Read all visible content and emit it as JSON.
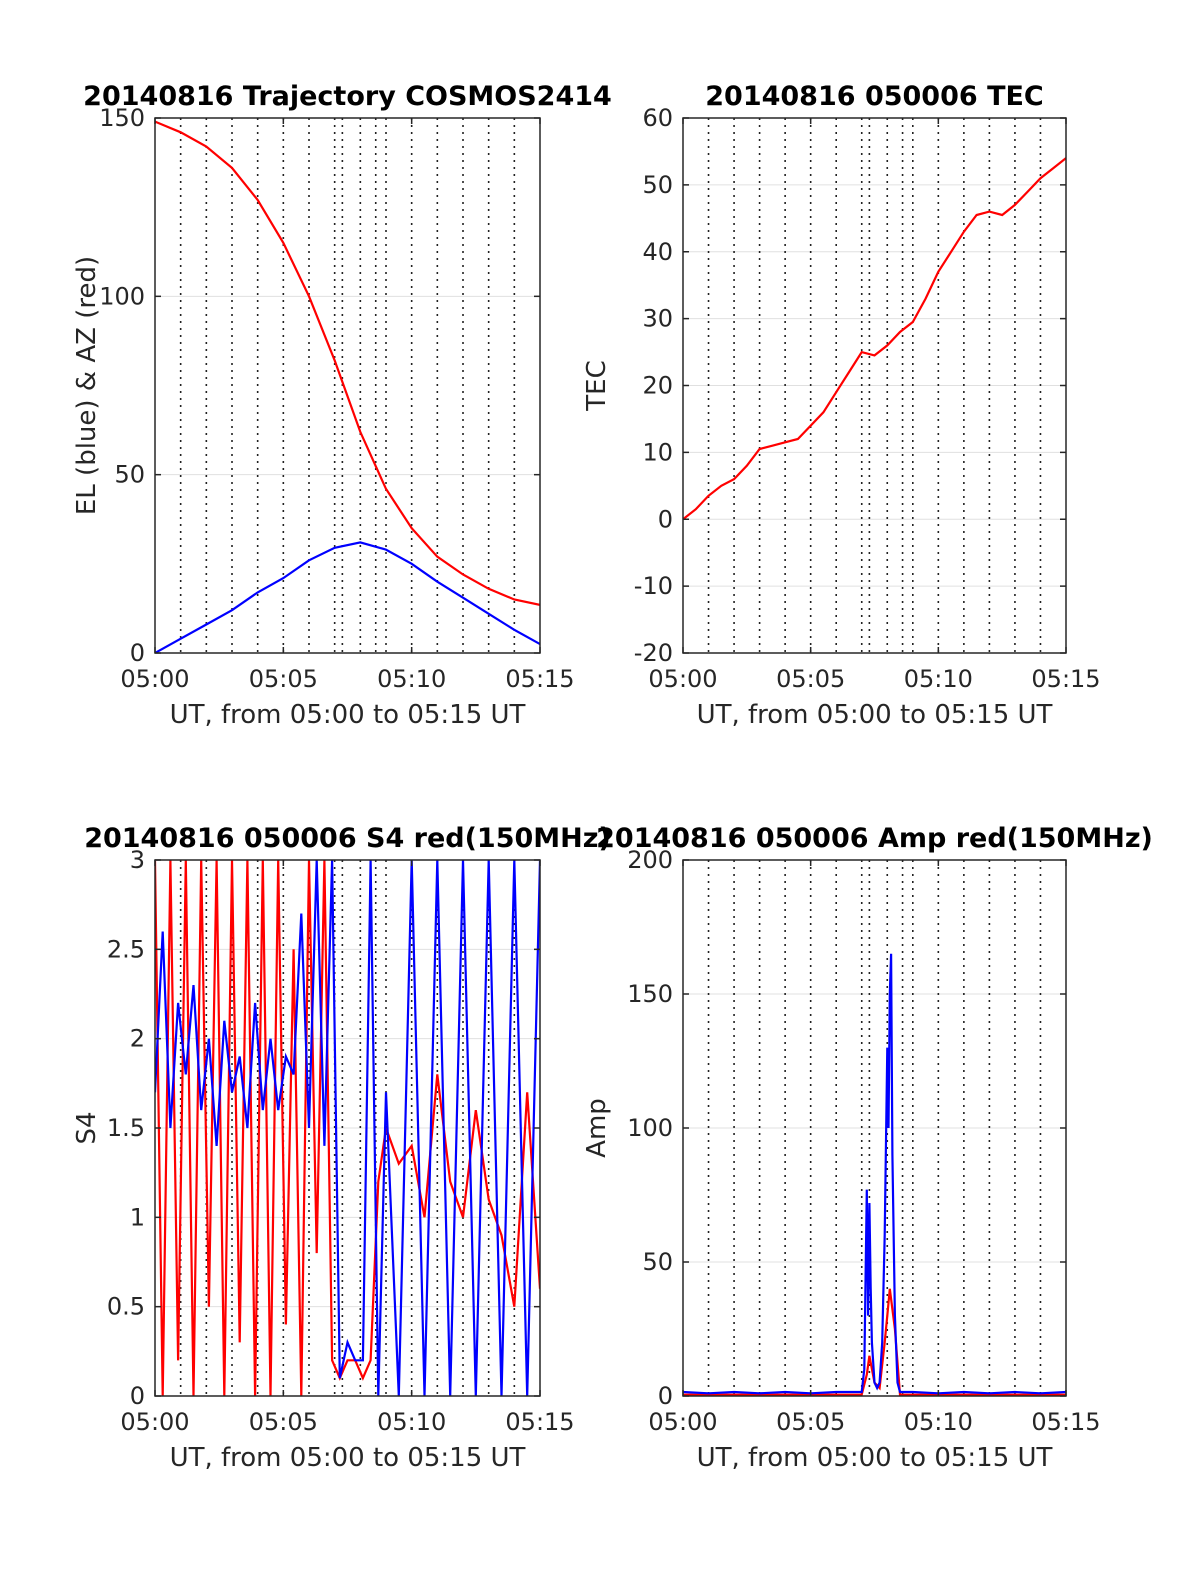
{
  "chart_data": [
    {
      "id": "trajectory",
      "type": "line",
      "title": "20140816 Trajectory COSMOS2414",
      "xlabel": "UT, from 05:00 to 05:15 UT",
      "ylabel": "EL (blue) & AZ (red)",
      "xlim": [
        0,
        15
      ],
      "ylim": [
        0,
        150
      ],
      "xticks": [
        "05:00",
        "05:05",
        "05:10",
        "05:15"
      ],
      "yticks": [
        "0",
        "50",
        "100",
        "150"
      ],
      "grid": true,
      "series": [
        {
          "color": "#ff0000",
          "x": [
            0,
            1,
            2,
            3,
            4,
            5,
            6,
            7,
            8,
            9,
            10,
            11,
            12,
            13,
            14,
            15
          ],
          "y": [
            149,
            146,
            142,
            136,
            127,
            115,
            100,
            82,
            62,
            46,
            35,
            27,
            22,
            18,
            15,
            13.5
          ]
        },
        {
          "color": "#0000ff",
          "x": [
            0,
            1,
            2,
            3,
            4,
            5,
            6,
            7,
            8,
            9,
            10,
            11,
            12,
            13,
            14,
            15
          ],
          "y": [
            0,
            4,
            8,
            12,
            17,
            21,
            26,
            29.5,
            31,
            29,
            25,
            20,
            15.5,
            11,
            6.5,
            2.5
          ]
        }
      ]
    },
    {
      "id": "tec",
      "type": "line",
      "title": "20140816 050006 TEC",
      "xlabel": "UT, from 05:00 to 05:15 UT",
      "ylabel": "TEC",
      "xlim": [
        0,
        15
      ],
      "ylim": [
        -20,
        60
      ],
      "xticks": [
        "05:00",
        "05:05",
        "05:10",
        "05:15"
      ],
      "yticks": [
        "-20",
        "-10",
        "0",
        "10",
        "20",
        "30",
        "40",
        "50",
        "60"
      ],
      "grid": true,
      "series": [
        {
          "color": "#ff0000",
          "x": [
            0,
            0.5,
            1,
            1.5,
            2,
            2.5,
            3,
            3.5,
            4,
            4.5,
            5,
            5.5,
            6,
            6.5,
            7,
            7.5,
            8,
            8.5,
            9,
            9.5,
            10,
            10.5,
            11,
            11.5,
            12,
            12.5,
            13,
            13.5,
            14,
            14.5,
            15
          ],
          "y": [
            0,
            1.5,
            3.5,
            5,
            6,
            8,
            10.5,
            11,
            11.5,
            12,
            14,
            16,
            19,
            22,
            25,
            24.5,
            26,
            28,
            29.5,
            33,
            37,
            40,
            43,
            45.5,
            46,
            45.5,
            47,
            49,
            51,
            52.5,
            54
          ]
        }
      ]
    },
    {
      "id": "s4",
      "type": "line",
      "title": "20140816 050006 S4 red(150MHz)",
      "xlabel": "UT, from 05:00 to 05:15 UT",
      "ylabel": "S4",
      "xlim": [
        0,
        15
      ],
      "ylim": [
        0,
        3
      ],
      "xticks": [
        "05:00",
        "05:05",
        "05:10",
        "05:15"
      ],
      "yticks": [
        "0",
        "0.5",
        "1",
        "1.5",
        "2",
        "2.5",
        "3"
      ],
      "grid": true,
      "series": [
        {
          "color": "#ff0000",
          "x": [
            0,
            0.3,
            0.6,
            0.9,
            1.2,
            1.5,
            1.8,
            2.1,
            2.4,
            2.7,
            3,
            3.3,
            3.6,
            3.9,
            4.2,
            4.5,
            4.8,
            5.1,
            5.4,
            5.7,
            6,
            6.3,
            6.6,
            6.9,
            7.2,
            7.5,
            7.8,
            8.1,
            8.4,
            8.7,
            9,
            9.5,
            10,
            10.5,
            11,
            11.5,
            12,
            12.5,
            13,
            13.5,
            14,
            14.5,
            15
          ],
          "y": [
            3,
            0,
            3,
            0.2,
            3,
            0,
            3,
            0.5,
            3,
            0,
            3,
            0.3,
            3,
            0,
            3,
            0,
            3,
            0.4,
            2.5,
            0,
            3,
            0.8,
            3,
            0.2,
            0.1,
            0.2,
            0.2,
            0.1,
            0.2,
            1.2,
            1.5,
            1.3,
            1.4,
            1.0,
            1.8,
            1.2,
            1.0,
            1.6,
            1.1,
            0.9,
            0.5,
            1.7,
            0.6
          ]
        },
        {
          "color": "#0000ff",
          "x": [
            0,
            0.3,
            0.6,
            0.9,
            1.2,
            1.5,
            1.8,
            2.1,
            2.4,
            2.7,
            3,
            3.3,
            3.6,
            3.9,
            4.2,
            4.5,
            4.8,
            5.1,
            5.4,
            5.7,
            6,
            6.3,
            6.6,
            6.9,
            7.2,
            7.5,
            7.8,
            8.1,
            8.4,
            8.7,
            9,
            9.5,
            10,
            10.5,
            11,
            11.5,
            12,
            12.5,
            13,
            13.5,
            14,
            14.5,
            15
          ],
          "y": [
            1.7,
            2.6,
            1.5,
            2.2,
            1.8,
            2.3,
            1.6,
            2.0,
            1.4,
            2.1,
            1.7,
            1.9,
            1.5,
            2.2,
            1.6,
            2.0,
            1.6,
            1.9,
            1.8,
            2.7,
            1.5,
            3,
            1.4,
            3,
            0.1,
            0.3,
            0.2,
            0.2,
            3,
            0,
            1.7,
            0,
            3,
            0,
            3,
            0,
            3,
            0,
            3,
            0,
            3,
            0,
            3
          ]
        }
      ]
    },
    {
      "id": "amp",
      "type": "line",
      "title": "20140816 050006 Amp red(150MHz)",
      "xlabel": "UT, from 05:00 to 05:15 UT",
      "ylabel": "Amp",
      "xlim": [
        0,
        15
      ],
      "ylim": [
        0,
        200
      ],
      "xticks": [
        "05:00",
        "05:05",
        "05:10",
        "05:15"
      ],
      "yticks": [
        "0",
        "50",
        "100",
        "150",
        "200"
      ],
      "grid": true,
      "series": [
        {
          "color": "#ff0000",
          "x": [
            0,
            7,
            7.2,
            7.3,
            7.5,
            7.7,
            7.9,
            8.0,
            8.1,
            8.3,
            8.5,
            15
          ],
          "y": [
            0.5,
            0.5,
            8,
            15,
            5,
            3,
            20,
            30,
            40,
            25,
            0.5,
            0.5
          ]
        },
        {
          "color": "#0000ff",
          "x": [
            0,
            1,
            2,
            3,
            4,
            5,
            6,
            7,
            7.1,
            7.2,
            7.25,
            7.3,
            7.35,
            7.4,
            7.5,
            7.6,
            7.7,
            7.8,
            7.9,
            8.0,
            8.05,
            8.1,
            8.15,
            8.2,
            8.3,
            8.4,
            8.5,
            9,
            10,
            11,
            12,
            13,
            14,
            15
          ],
          "y": [
            1.5,
            1,
            1.5,
            1,
            1.5,
            1,
            1.5,
            1.5,
            10,
            77,
            30,
            72,
            40,
            20,
            5,
            3,
            5,
            20,
            60,
            130,
            100,
            150,
            165,
            90,
            30,
            5,
            1.5,
            1.5,
            1,
            1.5,
            1,
            1.5,
            1,
            1.5
          ]
        }
      ]
    }
  ]
}
